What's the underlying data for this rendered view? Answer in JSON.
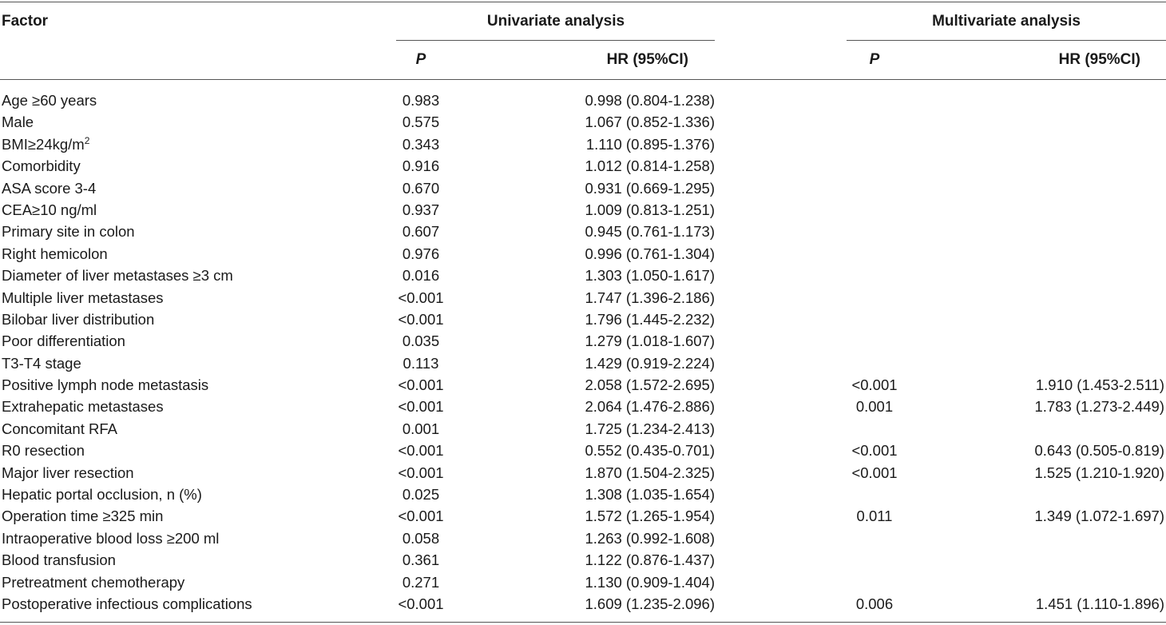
{
  "header": {
    "factor": "Factor",
    "univariate": "Univariate analysis",
    "multivariate": "Multivariate analysis",
    "p_label": "P",
    "hr_label": "HR (95%CI)"
  },
  "rows": [
    {
      "factor": "Age ≥60 years",
      "uni_p": "0.983",
      "uni_hr": "0.998 (0.804-1.238)",
      "multi_p": "",
      "multi_hr": ""
    },
    {
      "factor": "Male",
      "uni_p": "0.575",
      "uni_hr": "1.067 (0.852-1.336)",
      "multi_p": "",
      "multi_hr": ""
    },
    {
      "factor": "BMI≥24kg/m",
      "factor_sup": "2",
      "uni_p": "0.343",
      "uni_hr": "1.110 (0.895-1.376)",
      "multi_p": "",
      "multi_hr": ""
    },
    {
      "factor": "Comorbidity",
      "uni_p": "0.916",
      "uni_hr": "1.012 (0.814-1.258)",
      "multi_p": "",
      "multi_hr": ""
    },
    {
      "factor": "ASA score 3-4",
      "uni_p": "0.670",
      "uni_hr": "0.931 (0.669-1.295)",
      "multi_p": "",
      "multi_hr": ""
    },
    {
      "factor": "CEA≥10 ng/ml",
      "uni_p": "0.937",
      "uni_hr": "1.009 (0.813-1.251)",
      "multi_p": "",
      "multi_hr": ""
    },
    {
      "factor": "Primary site in colon",
      "uni_p": "0.607",
      "uni_hr": "0.945 (0.761-1.173)",
      "multi_p": "",
      "multi_hr": ""
    },
    {
      "factor": "Right hemicolon",
      "uni_p": "0.976",
      "uni_hr": "0.996 (0.761-1.304)",
      "multi_p": "",
      "multi_hr": ""
    },
    {
      "factor": "Diameter of liver metastases ≥3 cm",
      "uni_p": "0.016",
      "uni_hr": "1.303 (1.050-1.617)",
      "multi_p": "",
      "multi_hr": ""
    },
    {
      "factor": "Multiple liver metastases",
      "uni_p": "<0.001",
      "uni_hr": "1.747 (1.396-2.186)",
      "multi_p": "",
      "multi_hr": ""
    },
    {
      "factor": "Bilobar liver distribution",
      "uni_p": "<0.001",
      "uni_hr": "1.796 (1.445-2.232)",
      "multi_p": "",
      "multi_hr": ""
    },
    {
      "factor": "Poor differentiation",
      "uni_p": "0.035",
      "uni_hr": "1.279 (1.018-1.607)",
      "multi_p": "",
      "multi_hr": ""
    },
    {
      "factor": "T3-T4 stage",
      "uni_p": "0.113",
      "uni_hr": "1.429 (0.919-2.224)",
      "multi_p": "",
      "multi_hr": ""
    },
    {
      "factor": "Positive lymph node metastasis",
      "uni_p": "<0.001",
      "uni_hr": "2.058 (1.572-2.695)",
      "multi_p": "<0.001",
      "multi_hr": "1.910 (1.453-2.511)"
    },
    {
      "factor": "Extrahepatic metastases",
      "uni_p": "<0.001",
      "uni_hr": "2.064 (1.476-2.886)",
      "multi_p": "0.001",
      "multi_hr": "1.783 (1.273-2.449)"
    },
    {
      "factor": "Concomitant RFA",
      "uni_p": "0.001",
      "uni_hr": "1.725 (1.234-2.413)",
      "multi_p": "",
      "multi_hr": ""
    },
    {
      "factor": "R0 resection",
      "uni_p": "<0.001",
      "uni_hr": "0.552 (0.435-0.701)",
      "multi_p": "<0.001",
      "multi_hr": "0.643 (0.505-0.819)"
    },
    {
      "factor": "Major liver resection",
      "uni_p": "<0.001",
      "uni_hr": "1.870 (1.504-2.325)",
      "multi_p": "<0.001",
      "multi_hr": "1.525 (1.210-1.920)"
    },
    {
      "factor": "Hepatic portal occlusion, n (%)",
      "uni_p": "0.025",
      "uni_hr": "1.308 (1.035-1.654)",
      "multi_p": "",
      "multi_hr": ""
    },
    {
      "factor": "Operation time ≥325 min",
      "uni_p": "<0.001",
      "uni_hr": "1.572 (1.265-1.954)",
      "multi_p": "0.011",
      "multi_hr": "1.349 (1.072-1.697)"
    },
    {
      "factor": "Intraoperative blood loss ≥200 ml",
      "uni_p": "0.058",
      "uni_hr": "1.263 (0.992-1.608)",
      "multi_p": "",
      "multi_hr": ""
    },
    {
      "factor": "Blood transfusion",
      "uni_p": "0.361",
      "uni_hr": "1.122 (0.876-1.437)",
      "multi_p": "",
      "multi_hr": ""
    },
    {
      "factor": "Pretreatment chemotherapy",
      "uni_p": "0.271",
      "uni_hr": "1.130 (0.909-1.404)",
      "multi_p": "",
      "multi_hr": ""
    },
    {
      "factor": "Postoperative infectious complications",
      "uni_p": "<0.001",
      "uni_hr": "1.609 (1.235-2.096)",
      "multi_p": "0.006",
      "multi_hr": "1.451 (1.110-1.896)"
    }
  ]
}
